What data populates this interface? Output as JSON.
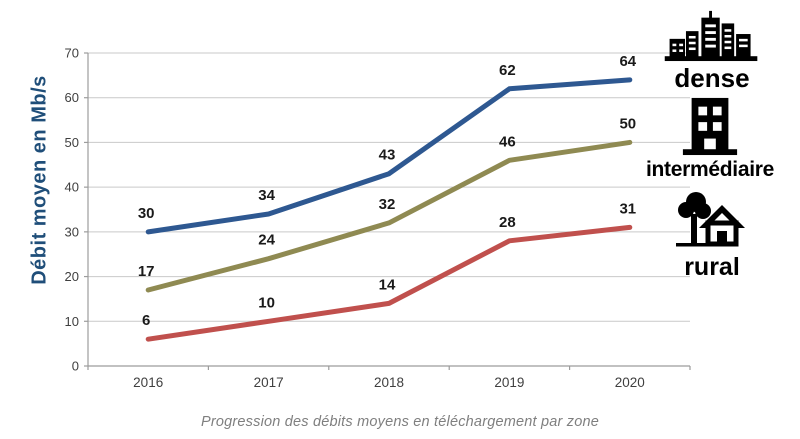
{
  "chart_data": {
    "type": "line",
    "caption": "Progression des débits moyens en téléchargement par zone",
    "ylabel": "Débit moyen en Mb/s",
    "xlabel": "",
    "categories": [
      "2016",
      "2017",
      "2018",
      "2019",
      "2020"
    ],
    "ylim": [
      0,
      70
    ],
    "yticks": [
      0,
      10,
      20,
      30,
      40,
      50,
      60,
      70
    ],
    "grid": true,
    "legend_position": "right",
    "series": [
      {
        "name": "dense",
        "color": "#2E5891",
        "icon": "city-buildings-icon",
        "values": [
          30,
          34,
          43,
          62,
          64
        ]
      },
      {
        "name": "intermédiaire",
        "color": "#8F8A52",
        "icon": "apartment-building-icon",
        "values": [
          17,
          24,
          32,
          46,
          50
        ]
      },
      {
        "name": "rural",
        "color": "#C0504D",
        "icon": "house-with-tree-icon",
        "values": [
          6,
          10,
          14,
          28,
          31
        ]
      }
    ]
  },
  "colors": {
    "background": "#FFFFFF",
    "grid": "#C9C9C9",
    "axis": "#9C9C9C",
    "tick_text": "#3F3F3F",
    "data_label": "#1A1A1A",
    "ylabel_text": "#1F4E79",
    "caption_text": "#7F7F7F",
    "legend_text": "#000000"
  }
}
